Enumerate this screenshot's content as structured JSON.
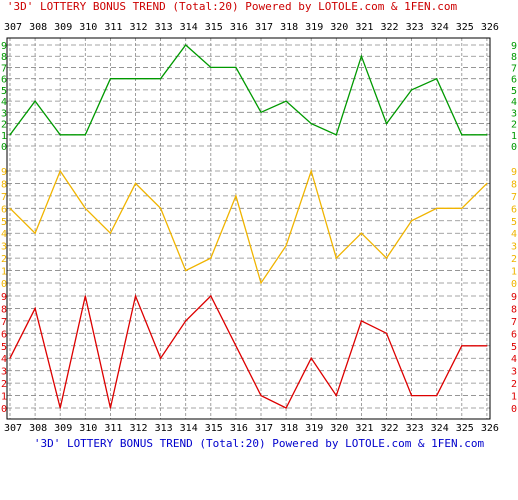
{
  "header": {
    "title_top": "'3D' LOTTERY BONUS TREND (Total:20)  Powered by LOTOLE.com & 1FEN.com",
    "title_bottom": "'3D' LOTTERY BONUS TREND (Total:20)  Powered by LOTOLE.com & 1FEN.com"
  },
  "colors": {
    "title_top": "#cc0000",
    "title_bottom": "#0000cc",
    "grid": "#888888",
    "axis": "#000000"
  },
  "chart_data": {
    "type": "line",
    "x": [
      "307",
      "308",
      "309",
      "310",
      "311",
      "312",
      "313",
      "314",
      "315",
      "316",
      "317",
      "318",
      "319",
      "320",
      "321",
      "322",
      "323",
      "324",
      "325",
      "326"
    ],
    "digit_ticks": [
      "0",
      "1",
      "2",
      "3",
      "4",
      "5",
      "6",
      "7",
      "8",
      "9"
    ],
    "ylim": [
      0,
      9
    ],
    "series": [
      {
        "color": "#009900",
        "values": [
          1,
          4,
          1,
          1,
          6,
          6,
          6,
          9,
          7,
          7,
          3,
          4,
          2,
          1,
          8,
          2,
          5,
          6,
          1,
          1
        ]
      },
      {
        "color": "#f0b400",
        "values": [
          6,
          4,
          9,
          6,
          4,
          8,
          6,
          1,
          2,
          7,
          0,
          3,
          9,
          2,
          4,
          2,
          5,
          6,
          6,
          8
        ]
      },
      {
        "color": "#dd0000",
        "values": [
          4,
          8,
          0,
          9,
          0,
          9,
          4,
          7,
          9,
          5,
          1,
          0,
          4,
          1,
          7,
          6,
          1,
          1,
          5,
          5
        ]
      }
    ]
  }
}
